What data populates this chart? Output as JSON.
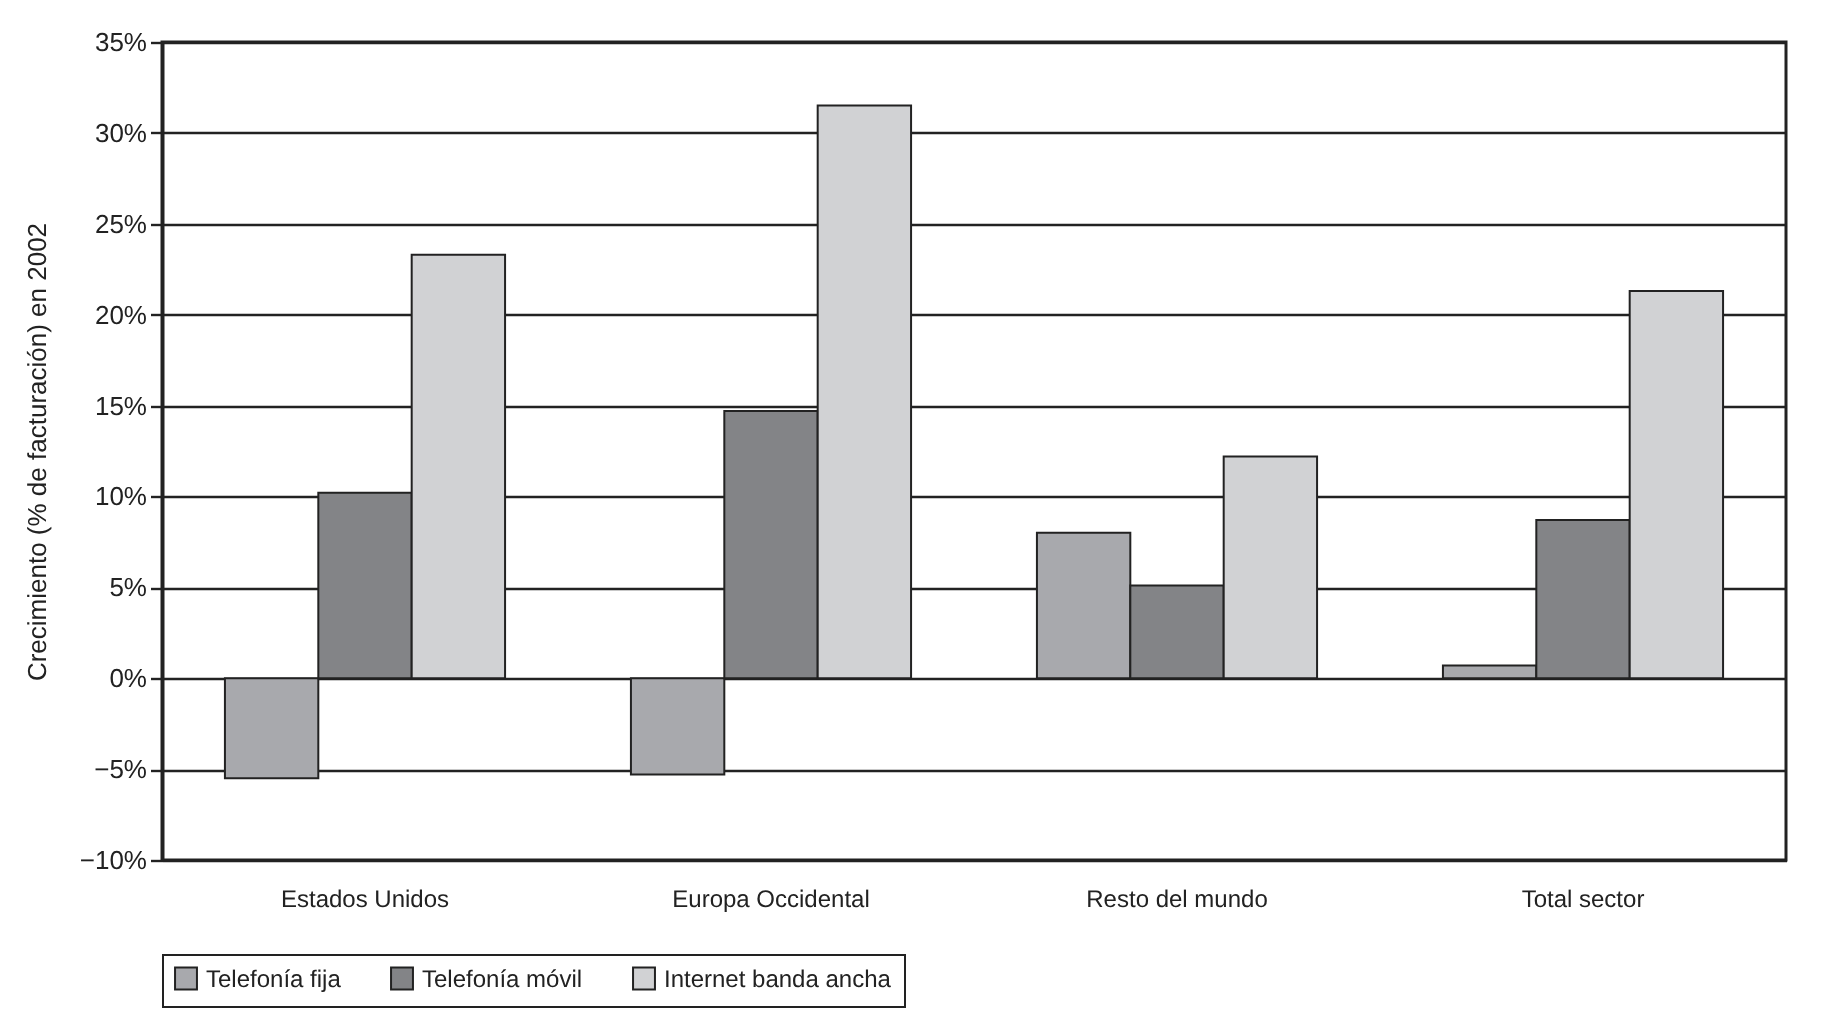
{
  "chart_data": {
    "type": "bar",
    "ylabel": "Crecimiento (% de facturación) en 2002",
    "categories": [
      "Estados Unidos",
      "Europa Occidental",
      "Resto del mundo",
      "Total sector"
    ],
    "series": [
      {
        "name": "Telefonía fija",
        "color": "#a8a9ad",
        "values": [
          -5.5,
          -5.3,
          8.0,
          0.7
        ]
      },
      {
        "name": "Telefonía móvil",
        "color": "#838487",
        "values": [
          10.2,
          14.7,
          5.1,
          8.7
        ]
      },
      {
        "name": "Internet banda ancha",
        "color": "#d1d2d4",
        "values": [
          23.3,
          31.5,
          12.2,
          21.3
        ]
      }
    ],
    "ylim": [
      -10,
      35
    ],
    "yticks": [
      {
        "value": -10,
        "label": "−10%"
      },
      {
        "value": -5,
        "label": "−5%"
      },
      {
        "value": 0,
        "label": "0%"
      },
      {
        "value": 5,
        "label": "5%"
      },
      {
        "value": 10,
        "label": "10%"
      },
      {
        "value": 15,
        "label": "15%"
      },
      {
        "value": 20,
        "label": "20%"
      },
      {
        "value": 25,
        "label": "25%"
      },
      {
        "value": 30,
        "label": "30%"
      },
      {
        "value": 35,
        "label": "35%"
      }
    ],
    "grid": "y",
    "legend": "bottom"
  }
}
